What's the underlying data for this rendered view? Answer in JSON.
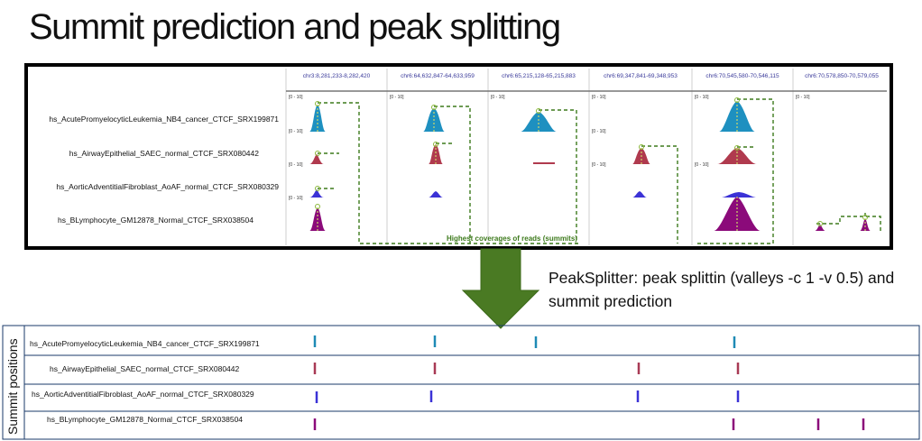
{
  "title": "Summit prediction and peak splitting",
  "browser_panel": {
    "regions": [
      "chr3:8,281,233-8,282,420",
      "chr6:64,632,847-64,633,959",
      "chr6:65,215,128-65,215,883",
      "chr6:69,347,841-69,348,953",
      "chr6:70,545,580-70,546,115",
      "chr6:70,578,850-70,579,055"
    ],
    "scale_label": "[0 - 10]",
    "tracks": [
      {
        "label": "hs_AcutePromyelocyticLeukemia_NB4_cancer_CTCF_SRX199871",
        "color": "#1e90c0"
      },
      {
        "label": "hs_AirwayEpithelial_SAEC_normal_CTCF_SRX080442",
        "color": "#b03a4e"
      },
      {
        "label": "hs_AorticAdventitialFibroblast_AoAF_normal_CTCF_SRX080329",
        "color": "#3b32d6"
      },
      {
        "label": "hs_BLymphocyte_GM12878_Normal_CTCF_SRX038504",
        "color": "#8b0a7a"
      }
    ],
    "annotation": "Highest coverages of reads (summits)",
    "annotation_color": "#3d7a1c"
  },
  "arrow": {
    "color": "#4a7a23",
    "icon": "down-arrow-icon"
  },
  "caption": "PeakSplitter: peak splittin (valleys -c 1 -v 0.5) and summit prediction",
  "summits": {
    "axis_label": "Summit positions",
    "rows": [
      {
        "label": "hs_AcutePromyelocyticLeukemia_NB4_cancer_CTCF_SRX199871",
        "color": "#1e8ab5"
      },
      {
        "label": "hs_AirwayEpithelial_SAEC_normal_CTCF_SRX080442",
        "color": "#a83a55"
      },
      {
        "label": "hs_AorticAdventitialFibroblast_AoAF_normal_CTCF_SRX080329",
        "color": "#3b32d6"
      },
      {
        "label": "hs_BLymphocyte_GM12878_Normal_CTCF_SRX038504",
        "color": "#8b0a7a"
      }
    ]
  }
}
